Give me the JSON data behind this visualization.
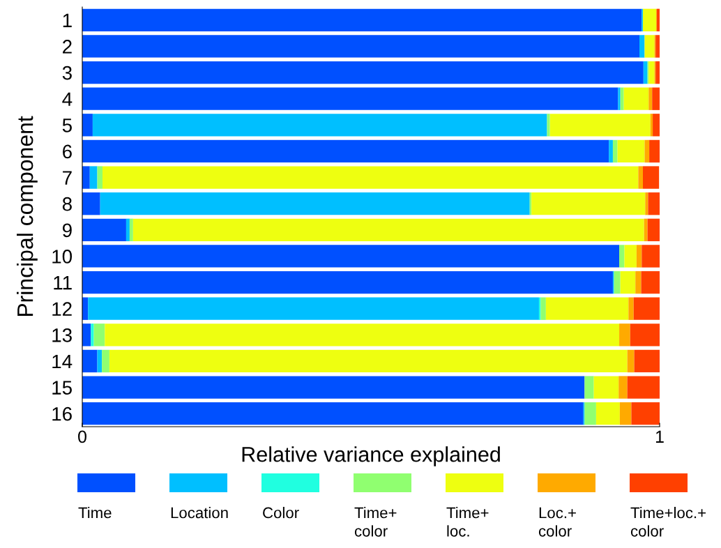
{
  "chart_data": {
    "type": "bar",
    "orientation": "horizontal",
    "stacked": true,
    "xlabel": "Relative variance explained",
    "ylabel": "Principal component",
    "categories": [
      "1",
      "2",
      "3",
      "4",
      "5",
      "6",
      "7",
      "8",
      "9",
      "10",
      "11",
      "12",
      "13",
      "14",
      "15",
      "16"
    ],
    "xlim": [
      0,
      1
    ],
    "xticks": [
      0,
      1
    ],
    "grid": false,
    "legend": "bottom",
    "series": [
      {
        "name": "Time",
        "color": "#0050ff",
        "values": [
          0.969,
          0.965,
          0.972,
          0.928,
          0.018,
          0.912,
          0.013,
          0.031,
          0.076,
          0.93,
          0.919,
          0.01,
          0.015,
          0.026,
          0.87,
          0.868
        ]
      },
      {
        "name": "Location",
        "color": "#00bfff",
        "values": [
          0.002,
          0.009,
          0.007,
          0.004,
          0.787,
          0.007,
          0.013,
          0.744,
          0.006,
          0,
          0.002,
          0.781,
          0,
          0.008,
          0,
          0.002
        ]
      },
      {
        "name": "Color",
        "color": "#20ffe0",
        "values": [
          0,
          0,
          0,
          0,
          0,
          0,
          0,
          0,
          0,
          0,
          0,
          0.003,
          0.005,
          0,
          0,
          0
        ]
      },
      {
        "name": "Time+\ncolor",
        "color": "#90ff70",
        "values": [
          0,
          0,
          0.002,
          0.006,
          0.005,
          0.008,
          0.009,
          0.003,
          0.006,
          0.009,
          0.011,
          0.009,
          0.019,
          0.013,
          0.016,
          0.02
        ]
      },
      {
        "name": "Time+\nloc.",
        "color": "#eeff10",
        "values": [
          0.023,
          0.017,
          0.01,
          0.043,
          0.174,
          0.047,
          0.928,
          0.197,
          0.885,
          0.021,
          0.026,
          0.143,
          0.891,
          0.897,
          0.043,
          0.041
        ]
      },
      {
        "name": "Loc.+\ncolor",
        "color": "#ffaa00",
        "values": [
          0.001,
          0.002,
          0.002,
          0.006,
          0.004,
          0.008,
          0.008,
          0.005,
          0.006,
          0.009,
          0.01,
          0.009,
          0.019,
          0.012,
          0.015,
          0.02
        ]
      },
      {
        "name": "Time+loc.+\ncolor",
        "color": "#ff4000",
        "values": [
          0.005,
          0.007,
          0.007,
          0.013,
          0.012,
          0.018,
          0.028,
          0.02,
          0.021,
          0.031,
          0.032,
          0.045,
          0.051,
          0.044,
          0.056,
          0.049
        ]
      }
    ]
  }
}
